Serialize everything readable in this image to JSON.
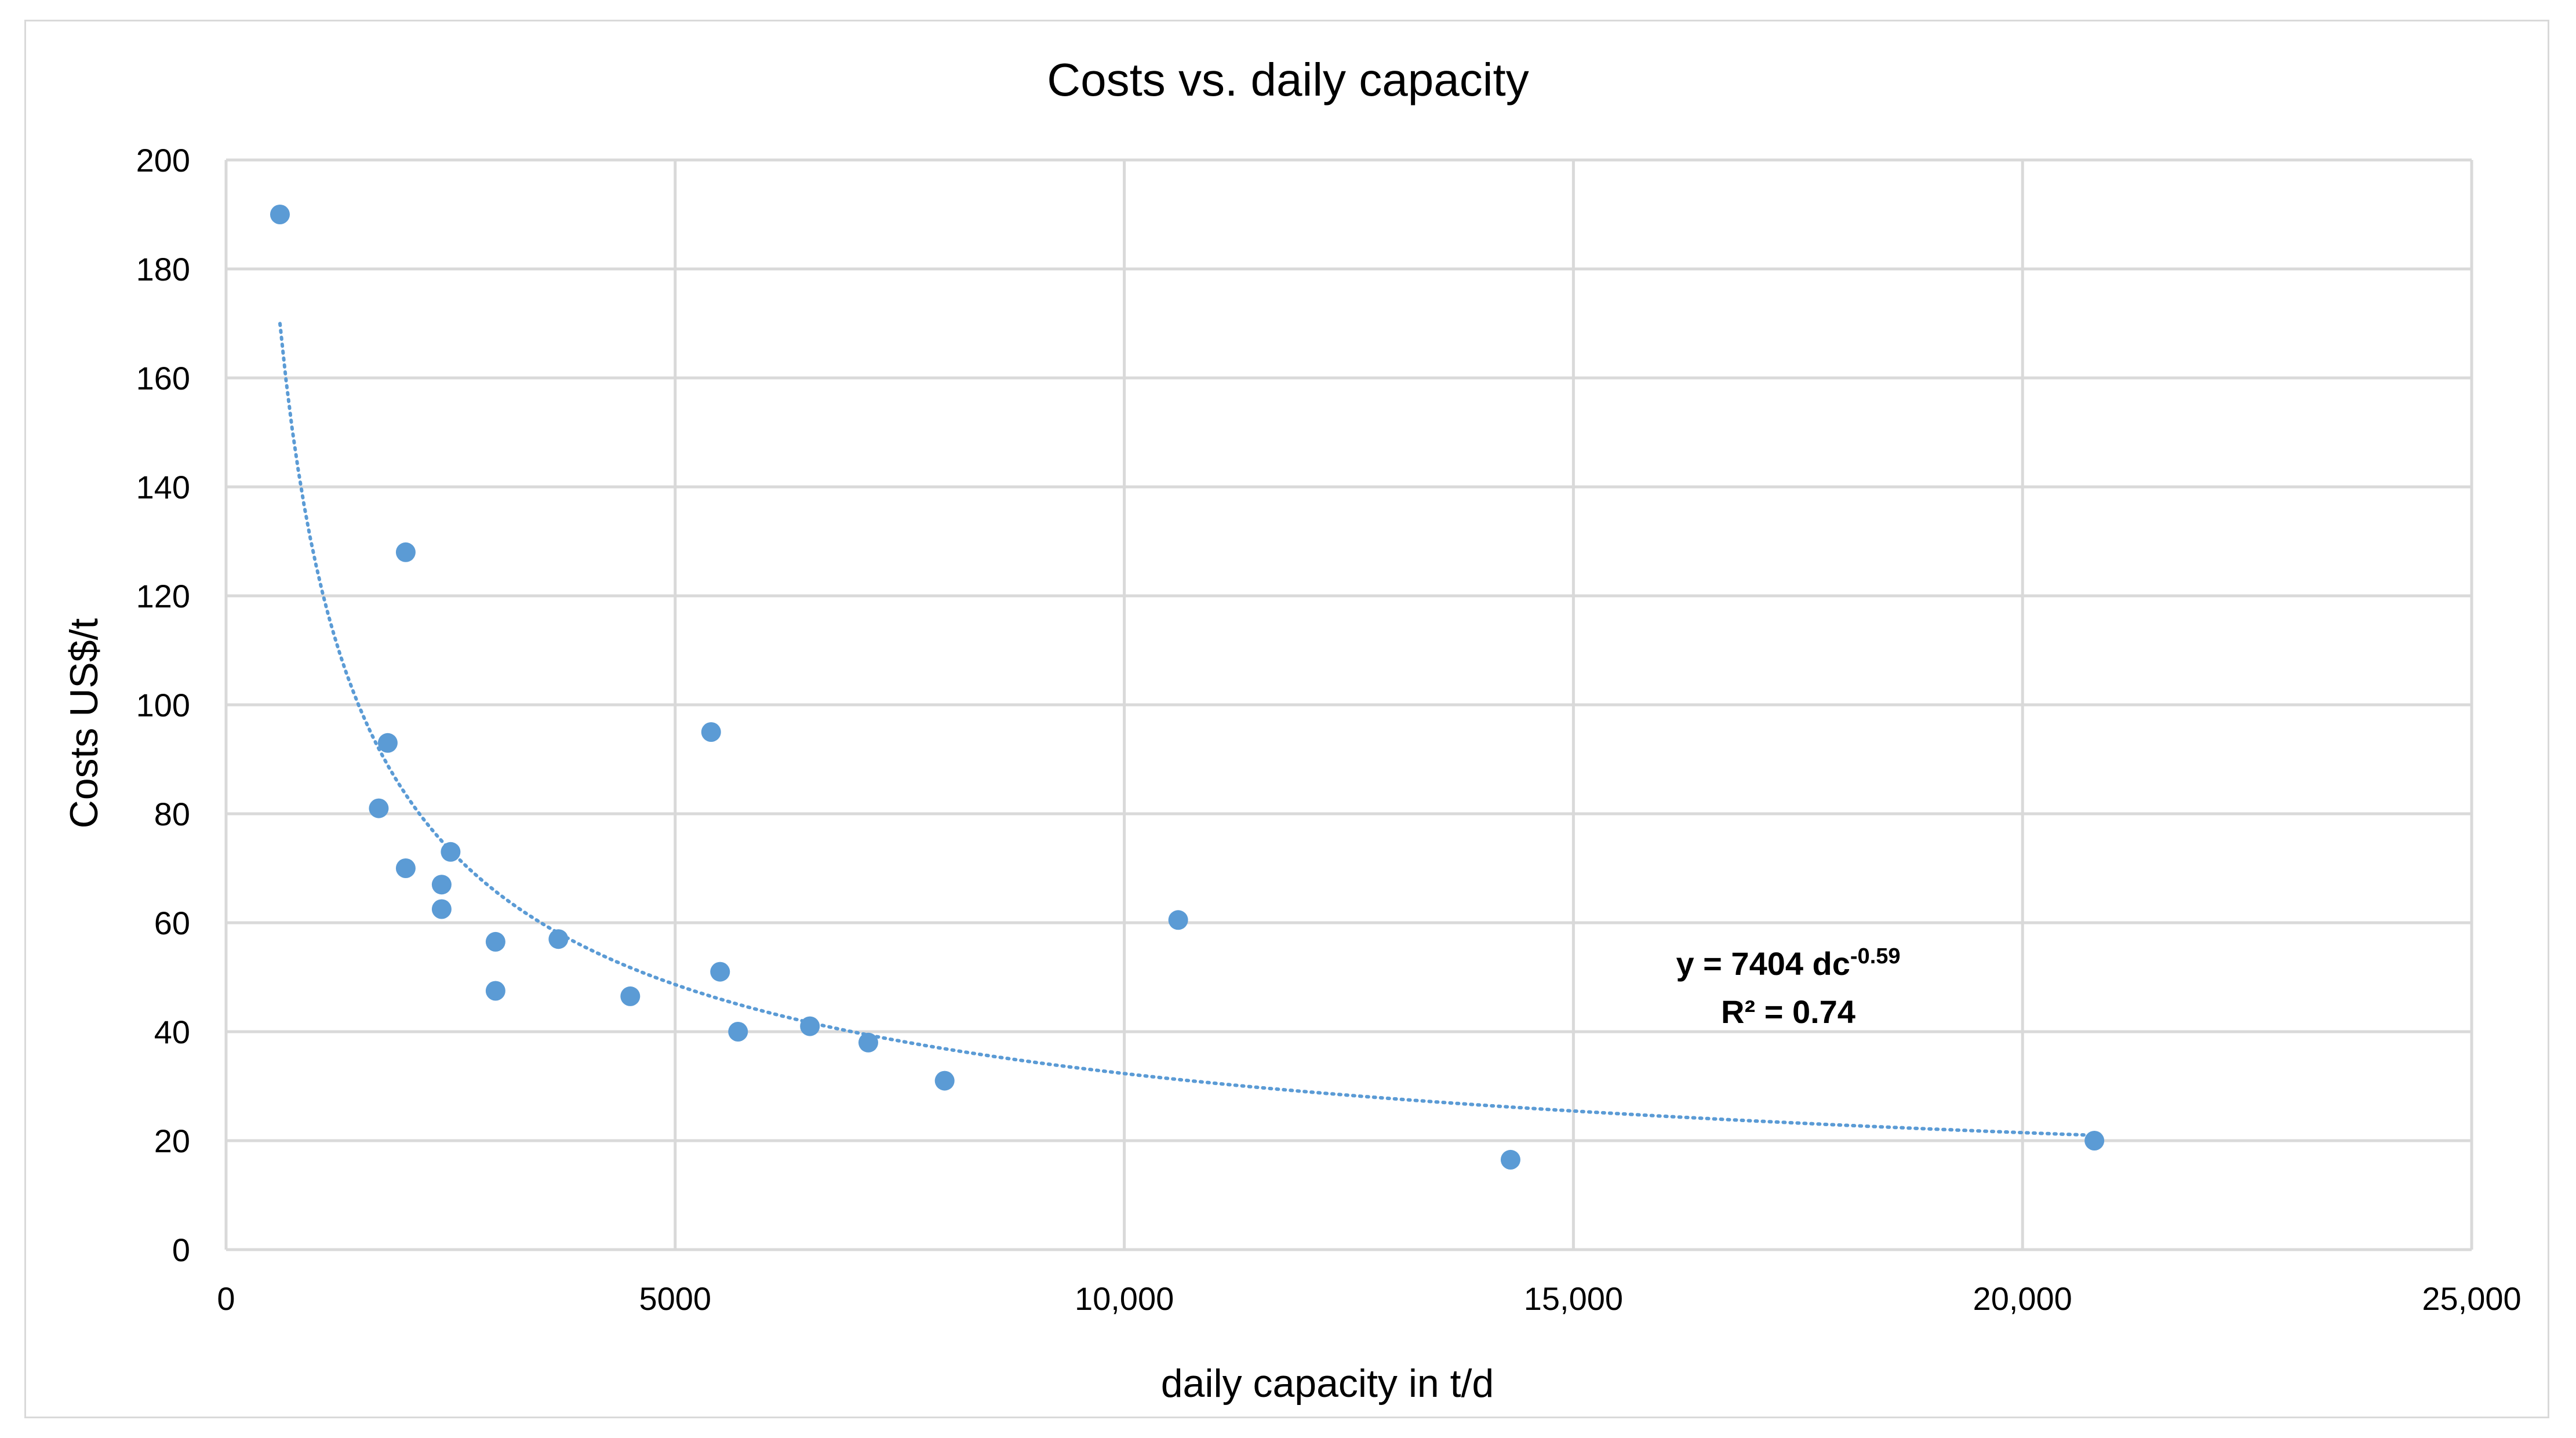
{
  "chart_data": {
    "type": "scatter",
    "title": "Costs vs. daily capacity",
    "xlabel": "daily capacity in t/d",
    "ylabel": "Costs  US$/t",
    "xlim": [
      0,
      25000
    ],
    "ylim": [
      0,
      200
    ],
    "x_ticks": [
      0,
      5000,
      10000,
      15000,
      20000,
      25000
    ],
    "x_tick_labels": [
      "0",
      "5000",
      "10,000",
      "15,000",
      "20,000",
      "25,000"
    ],
    "y_ticks": [
      0,
      20,
      40,
      60,
      80,
      100,
      120,
      140,
      160,
      180,
      200
    ],
    "y_tick_labels": [
      "0",
      "20",
      "40",
      "60",
      "80",
      "100",
      "120",
      "140",
      "160",
      "180",
      "200"
    ],
    "grid": true,
    "series": [
      {
        "name": "Costs",
        "color": "#5b9bd5",
        "points": [
          {
            "x": 600,
            "y": 190
          },
          {
            "x": 2000,
            "y": 128
          },
          {
            "x": 5400,
            "y": 95
          },
          {
            "x": 1800,
            "y": 93
          },
          {
            "x": 1700,
            "y": 81
          },
          {
            "x": 2500,
            "y": 73
          },
          {
            "x": 2000,
            "y": 70
          },
          {
            "x": 2400,
            "y": 67
          },
          {
            "x": 2400,
            "y": 62.5
          },
          {
            "x": 10600,
            "y": 60.5
          },
          {
            "x": 3000,
            "y": 56.5
          },
          {
            "x": 3700,
            "y": 57
          },
          {
            "x": 5500,
            "y": 51
          },
          {
            "x": 3000,
            "y": 47.5
          },
          {
            "x": 4500,
            "y": 46.5
          },
          {
            "x": 5700,
            "y": 40
          },
          {
            "x": 6500,
            "y": 41
          },
          {
            "x": 7150,
            "y": 38
          },
          {
            "x": 8000,
            "y": 31
          },
          {
            "x": 14300,
            "y": 16.5
          },
          {
            "x": 20800,
            "y": 20
          }
        ]
      }
    ],
    "trendline": {
      "type": "power",
      "coefficient": 7404,
      "exponent": -0.59,
      "x_range": [
        600,
        20800
      ],
      "color": "#5b9bd5",
      "style": "dotted",
      "equation_base": "y = 7404 dc",
      "equation_exponent": "-0.59",
      "r_squared_label": "R² = 0.74"
    }
  }
}
